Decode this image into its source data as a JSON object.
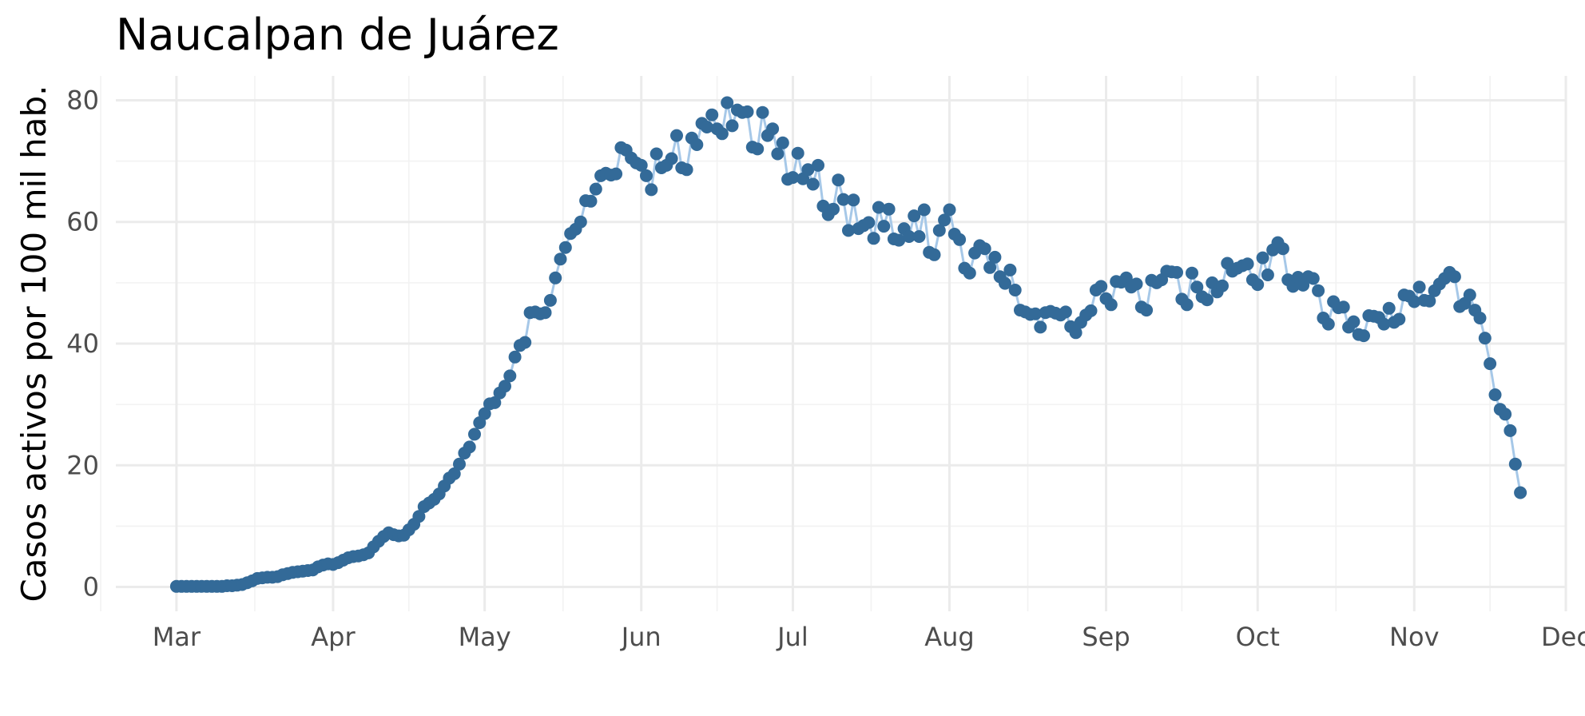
{
  "chart_data": {
    "type": "line",
    "title": "Naucalpan de Juárez",
    "xlabel": "",
    "ylabel": "Casos activos por 100 mil hab.",
    "x_ticks": [
      "Mar",
      "Apr",
      "May",
      "Jun",
      "Jul",
      "Aug",
      "Sep",
      "Oct",
      "Nov",
      "Dec"
    ],
    "y_ticks": [
      "0",
      "20",
      "40",
      "60",
      "80"
    ],
    "xlim": [
      "2020-02-18",
      "2020-12-01"
    ],
    "ylim": [
      -4,
      84
    ],
    "grid": true,
    "legend": "none",
    "series": [
      {
        "color_line": "#a6c8e8",
        "color_point": "#336a98",
        "start_date": "2020-03-01",
        "values": [
          0.1,
          0.1,
          0.1,
          0.1,
          0.1,
          0.1,
          0.1,
          0.1,
          0.1,
          0.1,
          0.2,
          0.2,
          0.3,
          0.4,
          0.7,
          1.0,
          1.4,
          1.5,
          1.6,
          1.6,
          1.7,
          2.0,
          2.2,
          2.4,
          2.5,
          2.6,
          2.7,
          2.8,
          3.3,
          3.6,
          3.8,
          3.7,
          4.0,
          4.4,
          4.8,
          5.0,
          5.1,
          5.3,
          5.6,
          6.6,
          7.5,
          8.3,
          8.9,
          8.6,
          8.4,
          8.5,
          9.4,
          10.3,
          11.6,
          13.2,
          13.8,
          14.4,
          15.3,
          16.6,
          17.9,
          18.6,
          20.2,
          22.0,
          23.0,
          25.1,
          27.0,
          28.5,
          30.1,
          30.3,
          31.9,
          33.0,
          34.7,
          37.8,
          39.7,
          40.2,
          45.1,
          45.2,
          44.9,
          45.1,
          47.1,
          50.8,
          53.9,
          55.8,
          58.1,
          58.8,
          60.0,
          63.5,
          63.4,
          65.4,
          67.6,
          68.0,
          67.7,
          67.9,
          72.2,
          71.8,
          70.5,
          69.7,
          69.3,
          67.6,
          65.3,
          71.2,
          68.9,
          69.3,
          70.4,
          74.2,
          68.9,
          68.6,
          73.8,
          72.7,
          76.2,
          75.6,
          77.6,
          75.3,
          74.5,
          79.6,
          75.8,
          78.4,
          78.0,
          78.1,
          72.3,
          72.0,
          78.0,
          74.2,
          75.3,
          71.2,
          73.0,
          67.0,
          67.3,
          71.3,
          67.1,
          68.6,
          66.2,
          69.3,
          62.6,
          61.2,
          62.1,
          66.9,
          63.7,
          58.6,
          63.6,
          58.9,
          59.4,
          59.9,
          57.3,
          62.4,
          59.3,
          62.1,
          57.2,
          57.0,
          58.9,
          57.6,
          61.0,
          57.6,
          62.0,
          55.0,
          54.6,
          58.6,
          60.3,
          62.0,
          58.0,
          57.1,
          52.4,
          51.6,
          54.9,
          56.1,
          55.6,
          52.5,
          54.2,
          51.0,
          49.9,
          52.1,
          48.8,
          45.5,
          45.2,
          44.8,
          44.9,
          42.7,
          45.1,
          45.3,
          45.0,
          44.7,
          45.2,
          42.8,
          41.8,
          43.5,
          44.7,
          45.4,
          48.8,
          49.4,
          47.4,
          46.4,
          50.2,
          50.1,
          50.8,
          49.3,
          49.8,
          46.0,
          45.5,
          50.4,
          50.0,
          50.5,
          51.9,
          51.8,
          51.7,
          47.3,
          46.4,
          51.6,
          49.3,
          47.7,
          47.2,
          50.0,
          48.5,
          49.5,
          53.2,
          51.9,
          52.4,
          52.8,
          53.1,
          50.5,
          49.7,
          54.1,
          51.3,
          55.4,
          56.6,
          55.6,
          50.5,
          49.4,
          50.9,
          49.6,
          51.0,
          50.7,
          48.7,
          44.2,
          43.2,
          46.9,
          45.9,
          46.0,
          42.7,
          43.6,
          41.5,
          41.3,
          44.6,
          44.5,
          44.3,
          43.2,
          45.8,
          43.5,
          44.0,
          48.0,
          47.8,
          46.9,
          49.3,
          47.1,
          47.0,
          48.7,
          49.8,
          50.7,
          51.7,
          51.0,
          46.1,
          46.6,
          48.0,
          45.5,
          44.2,
          40.9,
          36.7,
          31.6,
          29.2,
          28.4,
          25.7,
          20.2,
          15.5
        ]
      }
    ]
  }
}
